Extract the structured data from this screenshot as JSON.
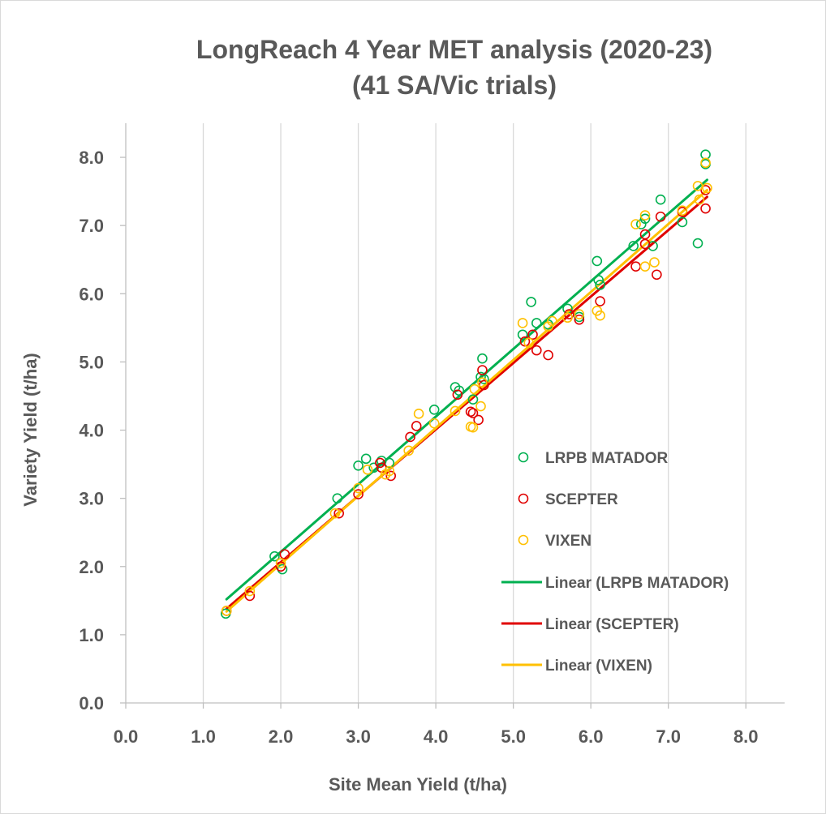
{
  "chart_data": {
    "type": "scatter",
    "title_lines": [
      "LongReach 4 Year MET analysis (2020-23)",
      "(41 SA/Vic trials)"
    ],
    "xlabel": "Site Mean Yield (t/ha)",
    "ylabel": "Variety  Yield (t/ha)",
    "xlim": [
      0,
      8.5
    ],
    "ylim": [
      0,
      8.5
    ],
    "x_ticks": [
      "0.0",
      "1.0",
      "2.0",
      "3.0",
      "4.0",
      "5.0",
      "6.0",
      "7.0",
      "8.0"
    ],
    "y_ticks": [
      "0.0",
      "1.0",
      "2.0",
      "3.0",
      "4.0",
      "5.0",
      "6.0",
      "7.0",
      "8.0"
    ],
    "grid": "vertical",
    "legend_position": "right",
    "series": [
      {
        "name": "LRPB MATADOR",
        "color": "#00b050",
        "marker": "open-circle",
        "points": [
          [
            1.29,
            1.31
          ],
          [
            1.92,
            2.15
          ],
          [
            2.02,
            1.96
          ],
          [
            2.73,
            3.0
          ],
          [
            3.0,
            3.48
          ],
          [
            3.1,
            3.58
          ],
          [
            3.2,
            3.45
          ],
          [
            3.3,
            3.55
          ],
          [
            3.4,
            3.52
          ],
          [
            3.98,
            4.3
          ],
          [
            4.25,
            4.63
          ],
          [
            4.3,
            4.58
          ],
          [
            4.48,
            4.45
          ],
          [
            4.58,
            4.78
          ],
          [
            4.6,
            5.05
          ],
          [
            4.62,
            4.75
          ],
          [
            5.12,
            5.4
          ],
          [
            5.23,
            5.88
          ],
          [
            5.3,
            5.57
          ],
          [
            5.45,
            5.55
          ],
          [
            5.7,
            5.78
          ],
          [
            5.85,
            5.66
          ],
          [
            6.08,
            6.48
          ],
          [
            6.1,
            6.2
          ],
          [
            6.12,
            6.13
          ],
          [
            6.55,
            6.7
          ],
          [
            6.65,
            7.02
          ],
          [
            6.7,
            7.1
          ],
          [
            6.8,
            6.7
          ],
          [
            6.9,
            7.38
          ],
          [
            7.18,
            7.05
          ],
          [
            7.38,
            6.74
          ],
          [
            7.48,
            8.04
          ],
          [
            7.48,
            7.9
          ]
        ],
        "trend": {
          "name": "Linear (LRPB MATADOR)",
          "x": [
            1.3,
            7.5
          ],
          "y": [
            1.52,
            7.67
          ]
        }
      },
      {
        "name": "SCEPTER",
        "color": "#e00000",
        "marker": "open-circle",
        "points": [
          [
            1.3,
            1.35
          ],
          [
            1.6,
            1.57
          ],
          [
            2.0,
            2.0
          ],
          [
            2.05,
            2.18
          ],
          [
            2.75,
            2.78
          ],
          [
            3.0,
            3.06
          ],
          [
            3.28,
            3.52
          ],
          [
            3.3,
            3.45
          ],
          [
            3.42,
            3.33
          ],
          [
            3.67,
            3.9
          ],
          [
            3.75,
            4.06
          ],
          [
            4.28,
            4.52
          ],
          [
            4.45,
            4.27
          ],
          [
            4.48,
            4.25
          ],
          [
            4.55,
            4.15
          ],
          [
            4.6,
            4.88
          ],
          [
            4.62,
            4.66
          ],
          [
            5.15,
            5.3
          ],
          [
            5.25,
            5.4
          ],
          [
            5.3,
            5.17
          ],
          [
            5.45,
            5.1
          ],
          [
            5.72,
            5.7
          ],
          [
            5.85,
            5.62
          ],
          [
            6.12,
            5.89
          ],
          [
            6.58,
            6.4
          ],
          [
            6.7,
            6.87
          ],
          [
            6.7,
            6.73
          ],
          [
            6.85,
            6.28
          ],
          [
            6.9,
            7.13
          ],
          [
            7.18,
            7.2
          ],
          [
            7.48,
            7.25
          ],
          [
            7.48,
            7.52
          ]
        ],
        "trend": {
          "name": "Linear (SCEPTER)",
          "x": [
            1.3,
            7.5
          ],
          "y": [
            1.38,
            7.42
          ]
        }
      },
      {
        "name": "VIXEN",
        "color": "#ffc000",
        "marker": "open-circle",
        "points": [
          [
            1.3,
            1.35
          ],
          [
            1.6,
            1.64
          ],
          [
            2.0,
            2.05
          ],
          [
            2.7,
            2.78
          ],
          [
            3.0,
            3.15
          ],
          [
            3.12,
            3.42
          ],
          [
            3.35,
            3.35
          ],
          [
            3.4,
            3.4
          ],
          [
            3.65,
            3.7
          ],
          [
            3.78,
            4.24
          ],
          [
            3.98,
            4.1
          ],
          [
            4.25,
            4.28
          ],
          [
            4.45,
            4.05
          ],
          [
            4.48,
            4.04
          ],
          [
            4.5,
            4.6
          ],
          [
            4.58,
            4.35
          ],
          [
            4.6,
            4.7
          ],
          [
            5.12,
            5.57
          ],
          [
            5.2,
            5.28
          ],
          [
            5.45,
            5.52
          ],
          [
            5.5,
            5.6
          ],
          [
            5.7,
            5.65
          ],
          [
            5.85,
            5.7
          ],
          [
            6.08,
            5.75
          ],
          [
            6.12,
            5.68
          ],
          [
            6.58,
            7.02
          ],
          [
            6.7,
            7.15
          ],
          [
            6.7,
            6.4
          ],
          [
            6.82,
            6.46
          ],
          [
            7.18,
            7.22
          ],
          [
            7.38,
            7.58
          ],
          [
            7.4,
            7.38
          ],
          [
            7.48,
            7.92
          ],
          [
            7.5,
            7.55
          ]
        ],
        "trend": {
          "name": "Linear (VIXEN)",
          "x": [
            1.3,
            7.5
          ],
          "y": [
            1.34,
            7.52
          ]
        }
      }
    ]
  }
}
